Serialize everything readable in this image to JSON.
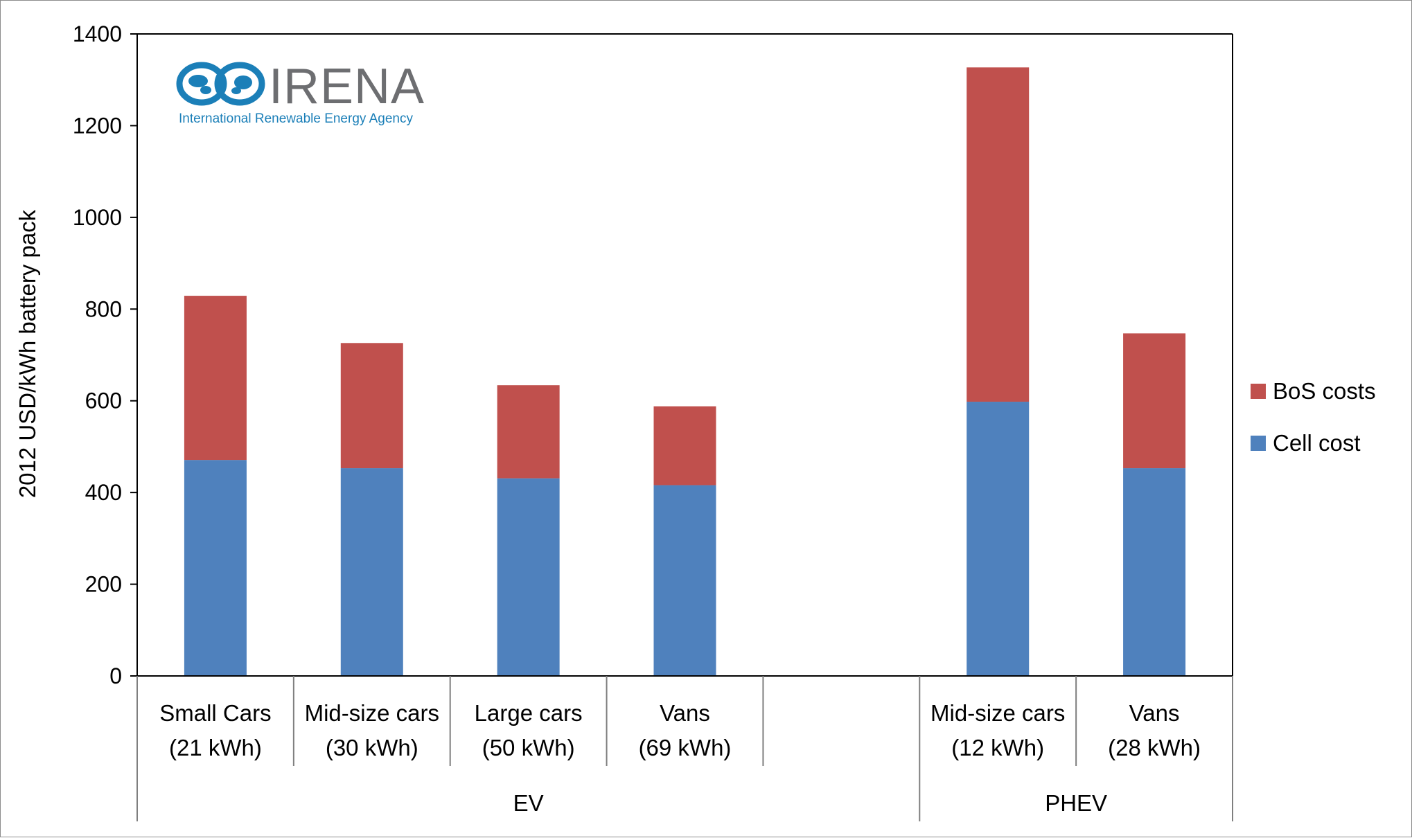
{
  "logo": {
    "name": "IRENA",
    "subtitle": "International Renewable Energy Agency"
  },
  "colors": {
    "bos": "#c0504d",
    "cell": "#4f81bd",
    "axis": "#000000",
    "logo_blue": "#1b7fb8",
    "logo_gray": "#6d6e71"
  },
  "chart_data": {
    "type": "bar",
    "stacked": true,
    "ylabel": "2012 USD/kWh battery pack",
    "ylim": [
      0,
      1400
    ],
    "yticks": [
      0,
      200,
      400,
      600,
      800,
      1000,
      1200,
      1400
    ],
    "grid": false,
    "legend_position": "right",
    "categories": [
      {
        "line1": "Small Cars",
        "line2": "(21 kWh)"
      },
      {
        "line1": "Mid-size cars",
        "line2": "(30 kWh)"
      },
      {
        "line1": "Large cars",
        "line2": "(50 kWh)"
      },
      {
        "line1": "Vans",
        "line2": "(69 kWh)"
      },
      {
        "line1": "",
        "line2": ""
      },
      {
        "line1": "Mid-size cars",
        "line2": "(12 kWh)"
      },
      {
        "line1": "Vans",
        "line2": "(28 kWh)"
      }
    ],
    "groups": [
      {
        "name": "EV",
        "categories": [
          0,
          1,
          2,
          3,
          4
        ]
      },
      {
        "name": "PHEV",
        "categories": [
          5,
          6
        ]
      }
    ],
    "series": [
      {
        "name": "Cell cost",
        "values": [
          471,
          453,
          431,
          416,
          null,
          598,
          453
        ]
      },
      {
        "name": "BoS costs",
        "values": [
          358,
          273,
          203,
          172,
          null,
          729,
          294
        ]
      }
    ],
    "legend": [
      "BoS costs",
      "Cell cost"
    ]
  }
}
